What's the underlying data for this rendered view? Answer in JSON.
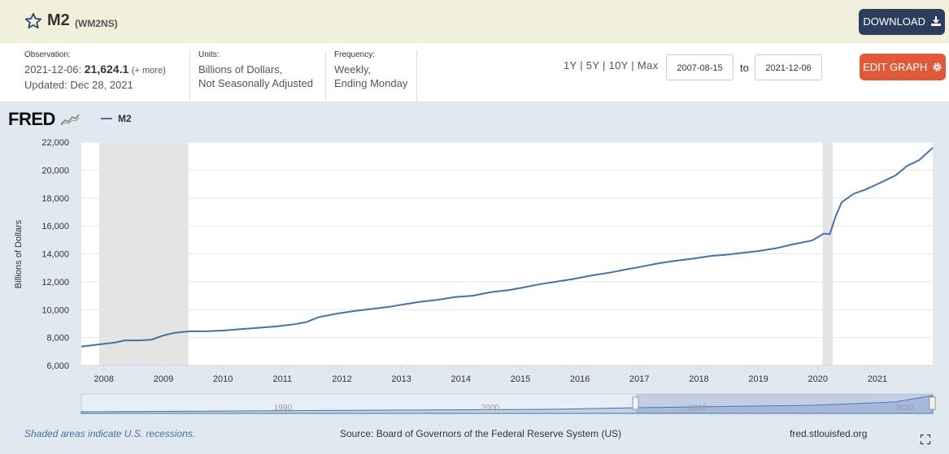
{
  "header": {
    "title": "M2",
    "series_id": "(WM2NS)",
    "download_label": "DOWNLOAD"
  },
  "observation": {
    "label": "Observation:",
    "date": "2021-12-06:",
    "value": "21,624.1",
    "more": "(+ more)",
    "updated": "Updated: Dec 28, 2021"
  },
  "units": {
    "label": "Units:",
    "line1": "Billions of Dollars,",
    "line2": "Not Seasonally Adjusted"
  },
  "frequency": {
    "label": "Frequency:",
    "line1": "Weekly,",
    "line2": "Ending Monday"
  },
  "range": {
    "links": [
      "1Y",
      "5Y",
      "10Y",
      "Max"
    ],
    "start": "2007-08-15",
    "to_label": "to",
    "end": "2021-12-06"
  },
  "edit_label": "EDIT GRAPH",
  "logo": "FRED",
  "legend_name": "M2",
  "footer": {
    "note": "Shaded areas indicate U.S. recessions.",
    "source": "Source: Board of Governors of the Federal Reserve System (US)",
    "site": "fred.stlouisfed.org"
  },
  "colors": {
    "line": "#4572a7",
    "recession": "#e4e4e4",
    "download": "#2c3e5c",
    "edit": "#e05a3a"
  },
  "chart_data": {
    "type": "line",
    "ylabel": "Billions of Dollars",
    "xlim": [
      2007.62,
      2021.93
    ],
    "ylim": [
      6000,
      22000
    ],
    "yticks": [
      6000,
      8000,
      10000,
      12000,
      14000,
      16000,
      18000,
      20000,
      22000
    ],
    "ytick_labels": [
      "6,000",
      "8,000",
      "10,000",
      "12,000",
      "14,000",
      "16,000",
      "18,000",
      "20,000",
      "22,000"
    ],
    "xticks": [
      2008,
      2009,
      2010,
      2011,
      2012,
      2013,
      2014,
      2015,
      2016,
      2017,
      2018,
      2019,
      2020,
      2021
    ],
    "recessions": [
      [
        2007.92,
        2009.42
      ],
      [
        2020.08,
        2020.25
      ]
    ],
    "series": [
      {
        "name": "M2",
        "x": [
          2007.62,
          2007.8,
          2008.0,
          2008.2,
          2008.35,
          2008.6,
          2008.8,
          2009.0,
          2009.2,
          2009.45,
          2009.7,
          2010.0,
          2010.3,
          2010.6,
          2010.9,
          2011.2,
          2011.4,
          2011.6,
          2011.9,
          2012.2,
          2012.5,
          2012.8,
          2013.0,
          2013.3,
          2013.6,
          2013.9,
          2014.2,
          2014.5,
          2014.8,
          2015.0,
          2015.3,
          2015.6,
          2015.9,
          2016.2,
          2016.5,
          2016.8,
          2017.0,
          2017.3,
          2017.6,
          2017.9,
          2018.2,
          2018.5,
          2018.8,
          2019.0,
          2019.3,
          2019.6,
          2019.9,
          2020.1,
          2020.2,
          2020.3,
          2020.4,
          2020.5,
          2020.6,
          2020.8,
          2021.0,
          2021.2,
          2021.3,
          2021.5,
          2021.7,
          2021.93
        ],
        "values": [
          7350,
          7450,
          7550,
          7650,
          7800,
          7800,
          7850,
          8150,
          8350,
          8450,
          8450,
          8500,
          8600,
          8700,
          8800,
          8950,
          9100,
          9450,
          9700,
          9900,
          10050,
          10200,
          10350,
          10550,
          10700,
          10900,
          11000,
          11250,
          11400,
          11550,
          11800,
          12000,
          12200,
          12450,
          12650,
          12900,
          13050,
          13300,
          13500,
          13650,
          13850,
          13950,
          14100,
          14200,
          14400,
          14700,
          14950,
          15450,
          15400,
          16700,
          17700,
          18000,
          18300,
          18600,
          19000,
          19400,
          19600,
          20300,
          20700,
          21600
        ]
      }
    ],
    "navigator_labels": [
      "1990",
      "2000",
      "2010",
      "2020"
    ]
  }
}
